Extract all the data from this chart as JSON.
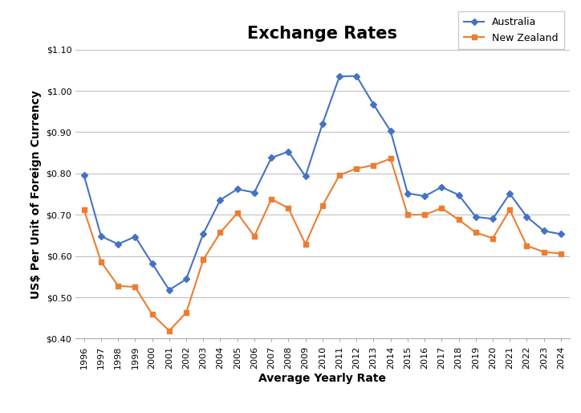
{
  "title": "Exchange Rates",
  "xlabel": "Average Yearly Rate",
  "ylabel": "US$ Per Unit of Foreign Currency",
  "years": [
    1996,
    1997,
    1998,
    1999,
    2000,
    2001,
    2002,
    2003,
    2004,
    2005,
    2006,
    2007,
    2008,
    2009,
    2010,
    2011,
    2012,
    2013,
    2014,
    2015,
    2016,
    2017,
    2018,
    2019,
    2020,
    2021,
    2022,
    2023,
    2024
  ],
  "australia": [
    0.795,
    0.648,
    0.629,
    0.647,
    0.582,
    0.518,
    0.544,
    0.654,
    0.736,
    0.762,
    0.754,
    0.838,
    0.853,
    0.793,
    0.92,
    1.035,
    1.036,
    0.967,
    0.903,
    0.752,
    0.745,
    0.767,
    0.748,
    0.695,
    0.69,
    0.751,
    0.695,
    0.661,
    0.653
  ],
  "new_zealand": [
    0.712,
    0.586,
    0.528,
    0.525,
    0.459,
    0.419,
    0.463,
    0.591,
    0.657,
    0.704,
    0.648,
    0.738,
    0.716,
    0.629,
    0.722,
    0.796,
    0.812,
    0.82,
    0.836,
    0.7,
    0.7,
    0.716,
    0.688,
    0.657,
    0.643,
    0.712,
    0.625,
    0.61,
    0.606
  ],
  "australia_color": "#4472C4",
  "nz_color": "#ED7D31",
  "australia_label": "Australia",
  "nz_label": "New Zealand",
  "ylim": [
    0.4,
    1.1
  ],
  "yticks": [
    0.4,
    0.5,
    0.6,
    0.7,
    0.8,
    0.9,
    1.0,
    1.1
  ],
  "background_color": "#FFFFFF",
  "grid_color": "#BBBBBB",
  "title_fontsize": 15,
  "axis_label_fontsize": 10,
  "tick_fontsize": 8,
  "legend_fontsize": 9
}
